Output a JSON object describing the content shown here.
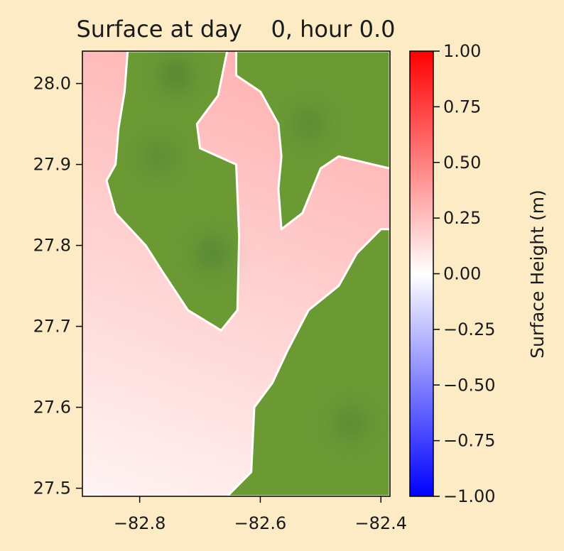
{
  "chart_data": {
    "type": "heatmap",
    "title": "Surface at day    0, hour 0.0",
    "xlabel": "",
    "ylabel": "",
    "xlim": [
      -82.895,
      -82.385
    ],
    "ylim": [
      27.49,
      28.04
    ],
    "x_ticks": [
      -82.8,
      -82.6,
      -82.4
    ],
    "x_tick_labels": [
      "−82.8",
      "−82.6",
      "−82.4"
    ],
    "y_ticks": [
      27.5,
      27.6,
      27.7,
      27.8,
      27.9,
      28.0
    ],
    "y_tick_labels": [
      "27.5",
      "27.6",
      "27.7",
      "27.8",
      "27.9",
      "28.0"
    ],
    "colorbar": {
      "label": "Surface Height (m)",
      "range": [
        -1.0,
        1.0
      ],
      "ticks": [
        1.0,
        0.75,
        0.5,
        0.25,
        0.0,
        -0.25,
        -0.5,
        -0.75,
        -1.0
      ],
      "tick_labels": [
        "1.00",
        "0.75",
        "0.50",
        "0.25",
        "0.00",
        "−0.25",
        "−0.50",
        "−0.75",
        "−1.00"
      ],
      "colormap": "bwr",
      "colors": {
        "low": "#0000ff",
        "mid": "#ffffff",
        "high": "#ff0000"
      }
    },
    "land_color": "#6b9a35",
    "land_color_dark": "#4e7f34",
    "water_level_range_m": [
      0.0,
      0.3
    ],
    "land_regions": [
      {
        "name": "western-peninsula",
        "polygon": [
          [
            -82.82,
            28.04
          ],
          [
            -82.655,
            28.04
          ],
          [
            -82.67,
            27.985
          ],
          [
            -82.705,
            27.95
          ],
          [
            -82.7,
            27.92
          ],
          [
            -82.64,
            27.9
          ],
          [
            -82.635,
            27.81
          ],
          [
            -82.638,
            27.72
          ],
          [
            -82.665,
            27.695
          ],
          [
            -82.72,
            27.72
          ],
          [
            -82.76,
            27.765
          ],
          [
            -82.79,
            27.8
          ],
          [
            -82.84,
            27.84
          ],
          [
            -82.855,
            27.88
          ],
          [
            -82.84,
            27.9
          ],
          [
            -82.835,
            27.945
          ],
          [
            -82.825,
            27.99
          ]
        ]
      },
      {
        "name": "northeast-land",
        "polygon": [
          [
            -82.64,
            28.04
          ],
          [
            -82.385,
            28.04
          ],
          [
            -82.385,
            27.895
          ],
          [
            -82.47,
            27.91
          ],
          [
            -82.5,
            27.895
          ],
          [
            -82.53,
            27.84
          ],
          [
            -82.565,
            27.82
          ],
          [
            -82.57,
            27.87
          ],
          [
            -82.565,
            27.91
          ],
          [
            -82.57,
            27.95
          ],
          [
            -82.6,
            27.99
          ],
          [
            -82.64,
            28.01
          ]
        ]
      },
      {
        "name": "southeast-land",
        "polygon": [
          [
            -82.385,
            27.82
          ],
          [
            -82.385,
            27.49
          ],
          [
            -82.655,
            27.49
          ],
          [
            -82.615,
            27.52
          ],
          [
            -82.61,
            27.6
          ],
          [
            -82.58,
            27.63
          ],
          [
            -82.555,
            27.67
          ],
          [
            -82.52,
            27.72
          ],
          [
            -82.47,
            27.75
          ],
          [
            -82.44,
            27.79
          ],
          [
            -82.4,
            27.82
          ]
        ]
      }
    ],
    "dark_land_spots": [
      {
        "lon": -82.74,
        "lat": 28.01,
        "strength": 0.9
      },
      {
        "lon": -82.77,
        "lat": 27.91,
        "strength": 0.6
      },
      {
        "lon": -82.68,
        "lat": 27.79,
        "strength": 0.8
      },
      {
        "lon": -82.52,
        "lat": 27.95,
        "strength": 0.7
      },
      {
        "lon": -82.45,
        "lat": 27.58,
        "strength": 0.7
      }
    ]
  }
}
